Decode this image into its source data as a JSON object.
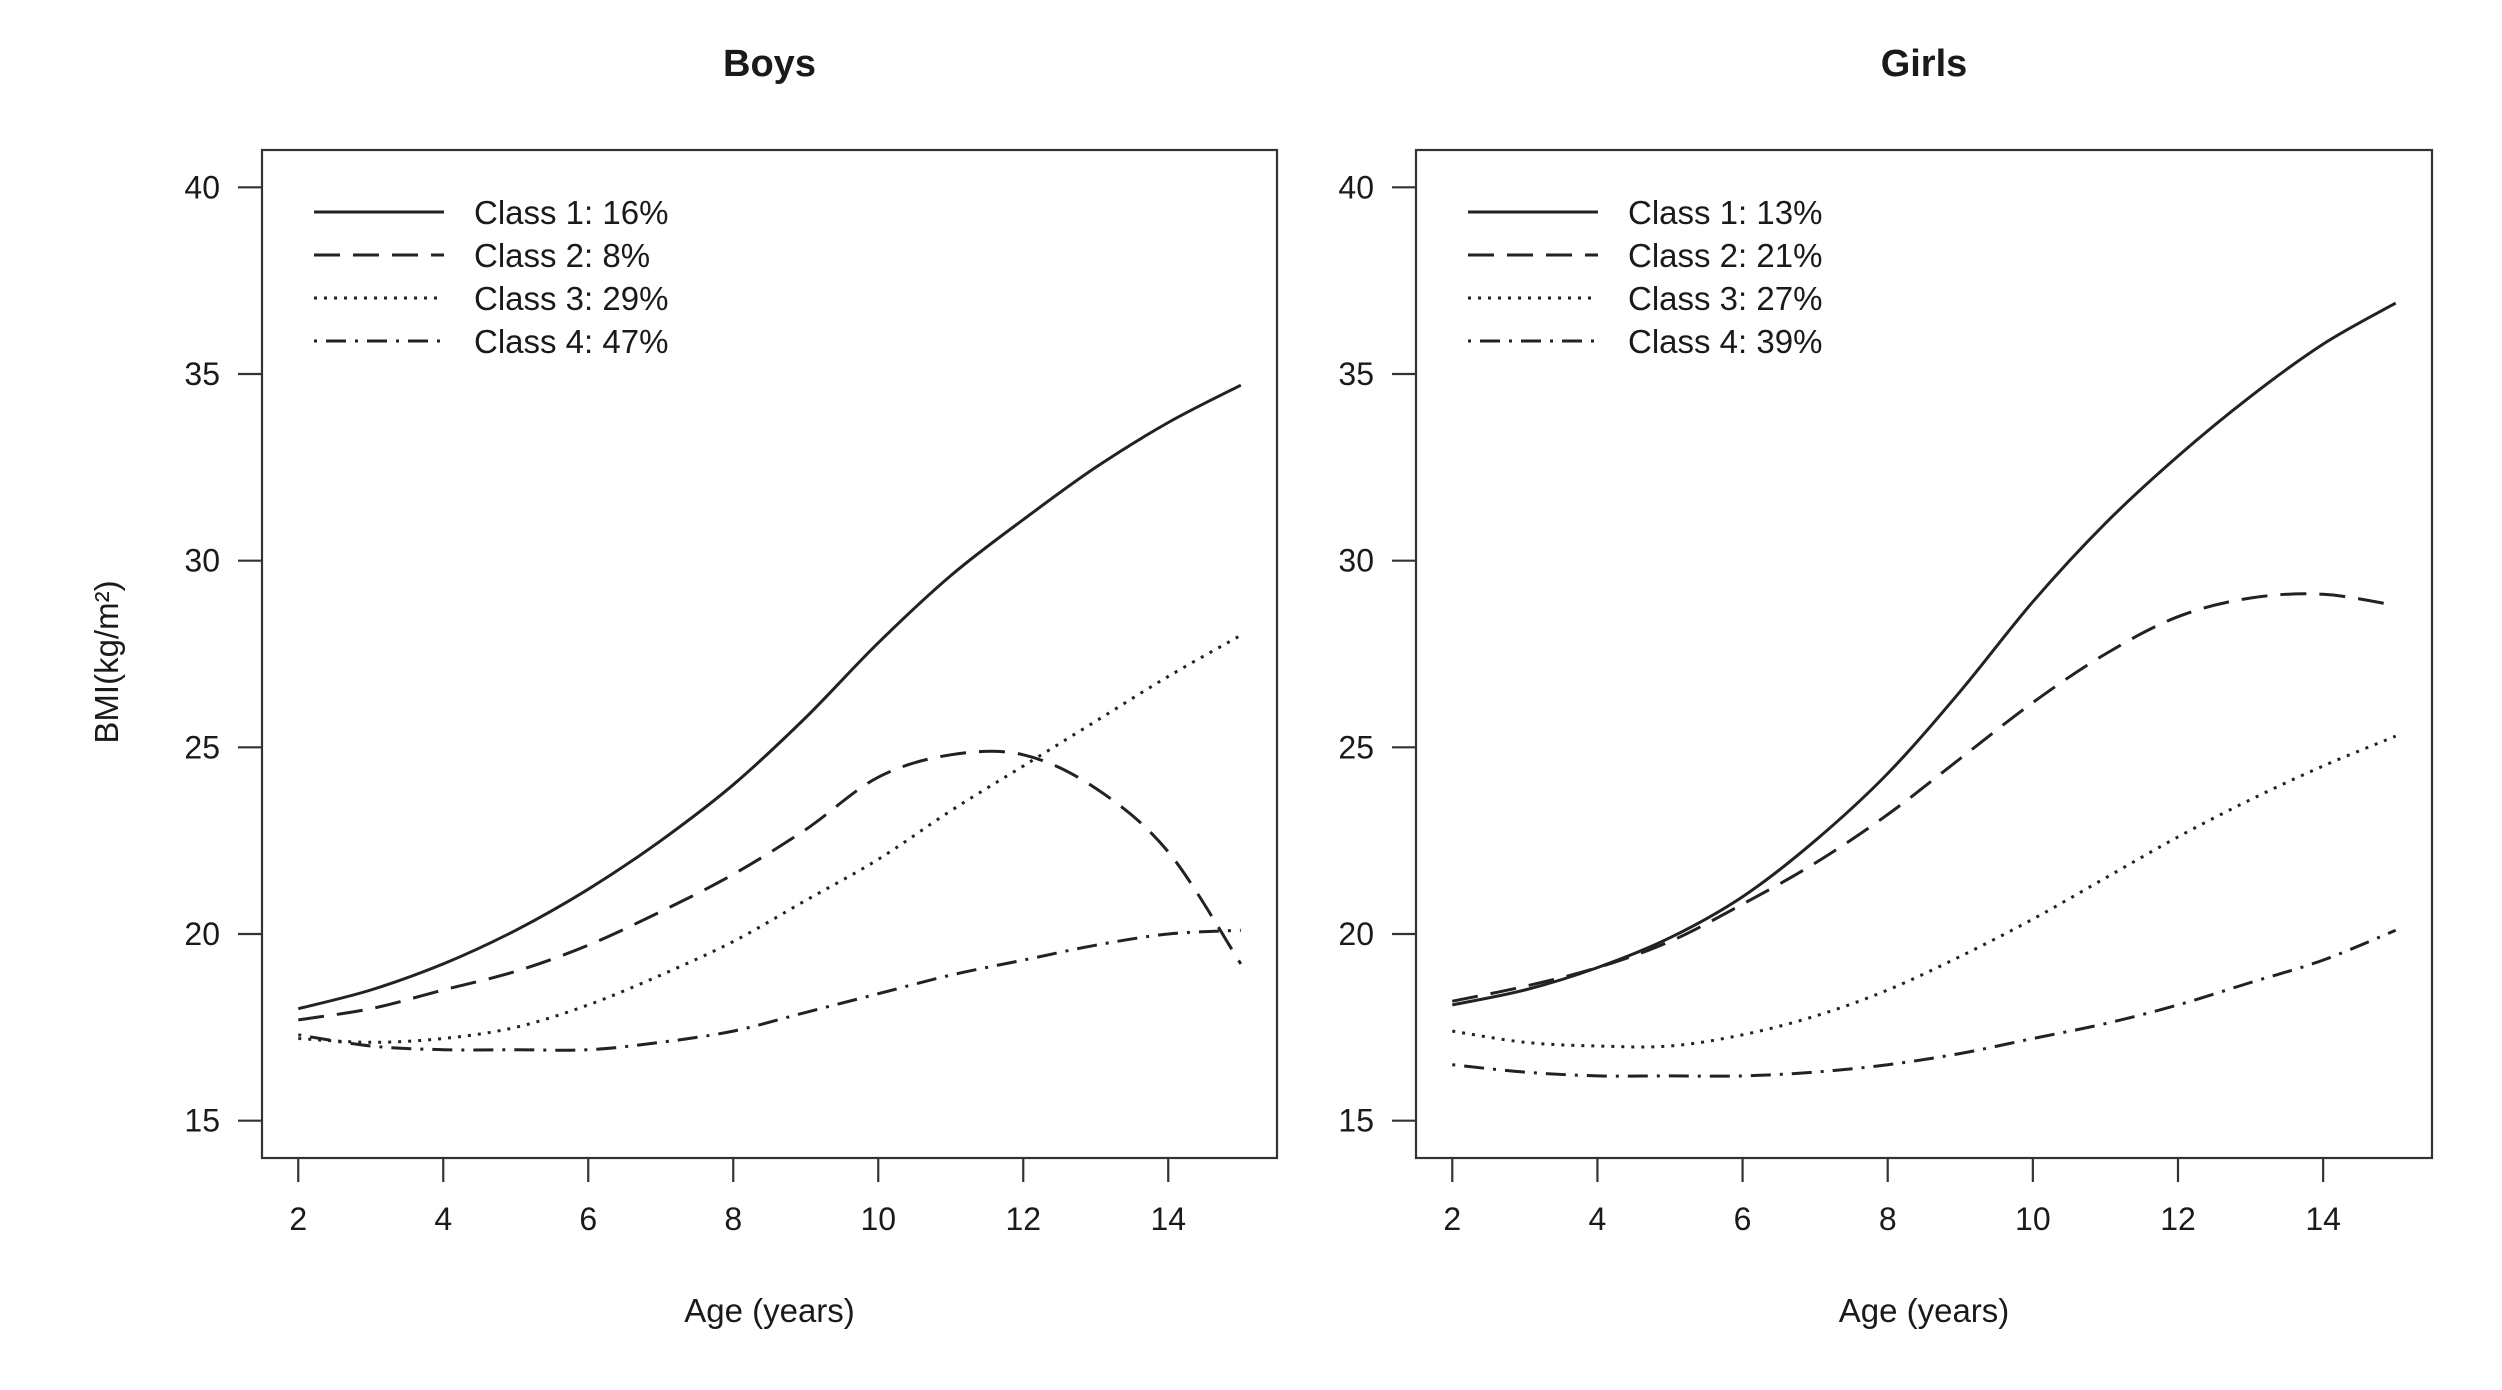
{
  "figure": {
    "ylabel": "BMI(kg/m²)"
  },
  "chart_data": [
    {
      "type": "line",
      "title": "Boys",
      "xlabel": "Age (years)",
      "ylabel": "BMI(kg/m²)",
      "xlim": [
        1.5,
        15.5
      ],
      "ylim": [
        14,
        41
      ],
      "xticks": [
        2,
        4,
        6,
        8,
        10,
        12,
        14
      ],
      "yticks": [
        15,
        20,
        25,
        30,
        35,
        40
      ],
      "legend_position": "top-left",
      "x": [
        2,
        3,
        4,
        5,
        6,
        7,
        8,
        9,
        10,
        11,
        12,
        13,
        14,
        15
      ],
      "series": [
        {
          "name": "Class 1: 16%",
          "style": "solid",
          "values": [
            18.0,
            18.5,
            19.2,
            20.1,
            21.2,
            22.5,
            24.0,
            25.8,
            27.8,
            29.6,
            31.1,
            32.5,
            33.7,
            34.7
          ]
        },
        {
          "name": "Class 2: 8%",
          "style": "dashed",
          "values": [
            17.7,
            18.0,
            18.5,
            19.0,
            19.7,
            20.6,
            21.6,
            22.8,
            24.2,
            24.8,
            24.8,
            23.9,
            22.2,
            19.2
          ]
        },
        {
          "name": "Class 3: 29%",
          "style": "dotted",
          "values": [
            17.2,
            17.1,
            17.2,
            17.5,
            18.1,
            18.9,
            19.8,
            20.9,
            22.0,
            23.3,
            24.5,
            25.7,
            26.9,
            28.0
          ]
        },
        {
          "name": "Class 4: 47%",
          "style": "dotdash",
          "values": [
            17.3,
            17.0,
            16.9,
            16.9,
            16.9,
            17.1,
            17.4,
            17.9,
            18.4,
            18.9,
            19.3,
            19.7,
            20.0,
            20.1
          ]
        }
      ]
    },
    {
      "type": "line",
      "title": "Girls",
      "xlabel": "Age (years)",
      "ylabel": "",
      "xlim": [
        1.5,
        15.5
      ],
      "ylim": [
        14,
        41
      ],
      "xticks": [
        2,
        4,
        6,
        8,
        10,
        12,
        14
      ],
      "yticks": [
        15,
        20,
        25,
        30,
        35,
        40
      ],
      "legend_position": "top-left",
      "x": [
        2,
        3,
        4,
        5,
        6,
        7,
        8,
        9,
        10,
        11,
        12,
        13,
        14,
        15
      ],
      "series": [
        {
          "name": "Class 1: 13%",
          "style": "solid",
          "values": [
            18.1,
            18.5,
            19.1,
            19.9,
            21.0,
            22.5,
            24.3,
            26.5,
            28.9,
            31.0,
            32.8,
            34.4,
            35.8,
            36.9
          ]
        },
        {
          "name": "Class 2: 21%",
          "style": "dashed",
          "values": [
            18.2,
            18.6,
            19.1,
            19.8,
            20.8,
            21.9,
            23.2,
            24.7,
            26.2,
            27.5,
            28.5,
            29.0,
            29.1,
            28.8
          ]
        },
        {
          "name": "Class 3: 27%",
          "style": "dotted",
          "values": [
            17.4,
            17.1,
            17.0,
            17.0,
            17.3,
            17.8,
            18.5,
            19.4,
            20.4,
            21.5,
            22.6,
            23.6,
            24.5,
            25.3
          ]
        },
        {
          "name": "Class 4: 39%",
          "style": "dotdash",
          "values": [
            16.5,
            16.3,
            16.2,
            16.2,
            16.2,
            16.3,
            16.5,
            16.8,
            17.2,
            17.6,
            18.1,
            18.7,
            19.3,
            20.1
          ]
        }
      ]
    }
  ]
}
